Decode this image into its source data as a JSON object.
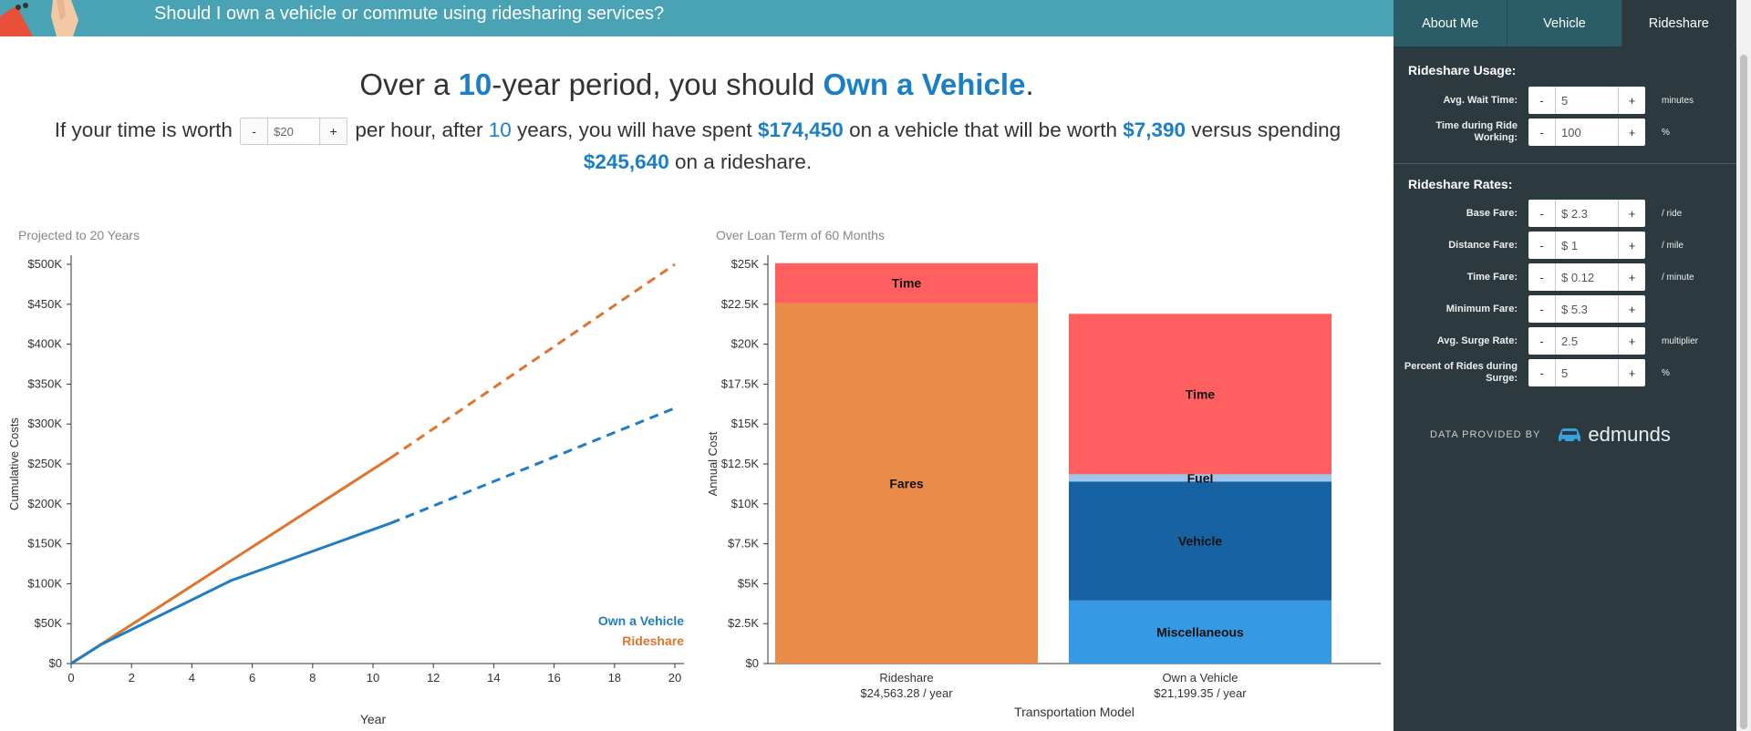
{
  "banner": {
    "title": "Should I own a vehicle or commute using ridesharing services?"
  },
  "headline": {
    "prefix": "Over a ",
    "years": "10",
    "mid": "-year period, you should ",
    "recommendation": "Own a Vehicle",
    "suffix": "."
  },
  "summary": {
    "t1": "If your time is worth",
    "hourly_value": "$20",
    "t2": "per hour, after",
    "years": "10",
    "t3": "years, you will have spent",
    "vehicle_spent": "$174,450",
    "t4": "on a vehicle that will be worth",
    "vehicle_worth": "$7,390",
    "t5": "versus spending",
    "rideshare_spent": "$245,640",
    "t6": "on a rideshare."
  },
  "stepper": {
    "minus": "-",
    "plus": "+"
  },
  "tabs": [
    {
      "label": "About Me"
    },
    {
      "label": "Vehicle"
    },
    {
      "label": "Rideshare",
      "active": true
    }
  ],
  "usage": {
    "title": "Rideshare Usage:",
    "rows": [
      {
        "label": "Avg. Wait Time:",
        "value": "5",
        "unit": "minutes"
      },
      {
        "label": "Time during Ride Working:",
        "value": "100",
        "unit": "%"
      }
    ]
  },
  "rates": {
    "title": "Rideshare Rates:",
    "rows": [
      {
        "label": "Base Fare:",
        "value": "$ 2.3",
        "unit": "/ ride"
      },
      {
        "label": "Distance Fare:",
        "value": "$ 1",
        "unit": "/ mile"
      },
      {
        "label": "Time Fare:",
        "value": "$ 0.12",
        "unit": "/ minute"
      },
      {
        "label": "Minimum Fare:",
        "value": "$ 5.3",
        "unit": ""
      },
      {
        "label": "Avg. Surge Rate:",
        "value": "2.5",
        "unit": "multiplier"
      },
      {
        "label": "Percent of Rides during Surge:",
        "value": "5",
        "unit": "%"
      }
    ]
  },
  "credit": {
    "caption": "DATA PROVIDED BY",
    "brand": "edmunds"
  },
  "colors": {
    "vehicle": "#1f7dc4",
    "rideshare": "#e0742c",
    "time": "#ff5f5f",
    "fares": "#e98c4a",
    "fuel": "#9ec5ea",
    "vehicle_bar": "#1662a3",
    "misc": "#3599e3",
    "panel": "#2c3a40",
    "banner": "#4aa3b4"
  },
  "chart_data": [
    {
      "type": "line",
      "caption": "Projected to 20 Years",
      "xlabel": "Year",
      "ylabel": "Cumulative Costs",
      "xlim": [
        0,
        20
      ],
      "ylim": [
        0,
        500000
      ],
      "x_ticks": [
        "0",
        "2",
        "4",
        "6",
        "8",
        "10",
        "12",
        "14",
        "16",
        "18",
        "20"
      ],
      "y_ticks": [
        "$0",
        "$50K",
        "$100K",
        "$150K",
        "$200K",
        "$250K",
        "$300K",
        "$350K",
        "$400K",
        "$450K",
        "$500K"
      ],
      "legend": [
        "Own a Vehicle",
        "Rideshare"
      ],
      "series": [
        {
          "name": "Own a Vehicle",
          "solid": [
            [
              0,
              0
            ],
            [
              1,
              24000
            ],
            [
              5.3,
              104000
            ],
            [
              10.6,
              176000
            ]
          ],
          "dashed": [
            [
              10.6,
              176000
            ],
            [
              20,
              320000
            ]
          ]
        },
        {
          "name": "Rideshare",
          "solid": [
            [
              0,
              0
            ],
            [
              10.6,
              258000
            ]
          ],
          "dashed": [
            [
              10.6,
              258000
            ],
            [
              20,
              500000
            ]
          ]
        }
      ]
    },
    {
      "type": "bar",
      "stacked": true,
      "caption": "Over Loan Term of 60 Months",
      "xlabel": "Transportation Model",
      "ylabel": "Annual Cost",
      "ylim": [
        0,
        25000
      ],
      "y_ticks": [
        "$0",
        "$2.5K",
        "$5K",
        "$7.5K",
        "$10K",
        "$12.5K",
        "$15K",
        "$17.5K",
        "$20K",
        "$22.5K",
        "$25K"
      ],
      "categories": [
        {
          "name": "Rideshare",
          "total": "$24,563.28 / year"
        },
        {
          "name": "Own a Vehicle",
          "total": "$21,199.35 / year"
        }
      ],
      "stacks": [
        [
          {
            "name": "Fares",
            "value": 22570
          },
          {
            "name": "Time",
            "value": 2500
          }
        ],
        [
          {
            "name": "Miscellaneous",
            "value": 3950
          },
          {
            "name": "Vehicle",
            "value": 7450
          },
          {
            "name": "Fuel",
            "value": 450
          },
          {
            "name": "Time",
            "value": 10050
          }
        ]
      ]
    }
  ]
}
